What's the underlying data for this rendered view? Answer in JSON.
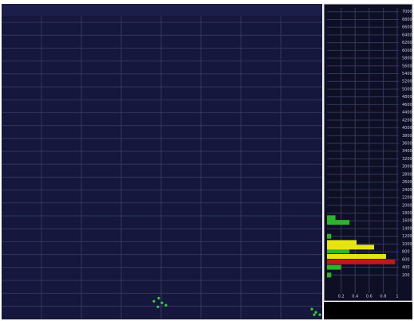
{
  "chart_data": [
    {
      "type": "scatter",
      "color": "#3ccf3c",
      "x": [
        190,
        196,
        200,
        205,
        195,
        387,
        392,
        397,
        390
      ],
      "values": [
        22,
        26,
        20,
        17,
        15,
        12,
        8,
        5,
        5
      ],
      "xlim": [
        0,
        400
      ],
      "ylim": [
        0,
        400
      ],
      "grid": true
    },
    {
      "type": "hbar",
      "y": [
        200,
        400,
        540,
        680,
        820,
        920,
        1040,
        1200,
        1560,
        1680
      ],
      "values": [
        0.06,
        0.2,
        0.97,
        0.84,
        0.32,
        0.67,
        0.42,
        0.06,
        0.32,
        0.12
      ],
      "colors": [
        "#2db52d",
        "#2db52d",
        "#c0181d",
        "#e5e510",
        "#2db52d",
        "#e5e510",
        "#e5e510",
        "#2db52d",
        "#2db52d",
        "#2db52d"
      ],
      "xlim": [
        0,
        1
      ],
      "ylim": [
        0,
        7200
      ],
      "xticks": [
        0.2,
        0.4,
        0.6,
        0.8,
        1
      ],
      "yticks": [
        200,
        400,
        600,
        800,
        1000,
        1200,
        1400,
        1600,
        1800,
        2000,
        2200,
        2400,
        2600,
        2800,
        3000,
        3200,
        3400,
        3600,
        3800,
        4000,
        4200,
        4400,
        4600,
        4800,
        5000,
        5200,
        5400,
        5600,
        5800,
        6000,
        6200,
        6400,
        6600,
        6800,
        7000
      ],
      "grid": true
    }
  ]
}
